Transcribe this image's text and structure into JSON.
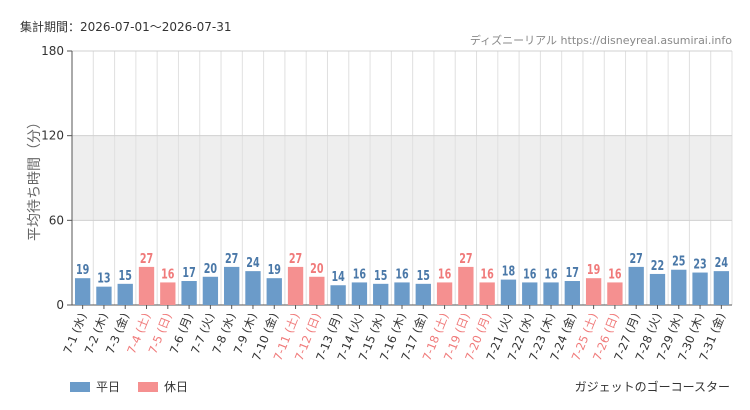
{
  "header": {
    "period": "集計期間：2026-07-01〜2026-07-31",
    "credit": "ディズニーリアル https://disneyreal.asumirai.info"
  },
  "legend": {
    "weekday_label": "平日",
    "holiday_label": "休日"
  },
  "footer": {
    "attraction": "ガジェットのゴーコースター"
  },
  "colors": {
    "weekday": "#6b9bc9",
    "holiday": "#f59090",
    "weekday_text": "#4a78a8",
    "holiday_text": "#f07a7a",
    "band": "#eeeeee",
    "grid": "#e0e0e0"
  },
  "chart_data": {
    "type": "bar",
    "ylabel": "平均待ち時間（分）",
    "ylim": [
      0,
      180
    ],
    "yticks": [
      0,
      60,
      120,
      180
    ],
    "shaded_band": [
      60,
      120
    ],
    "categories": [
      "7-1 (水)",
      "7-2 (木)",
      "7-3 (金)",
      "7-4 (土)",
      "7-5 (日)",
      "7-6 (月)",
      "7-7 (火)",
      "7-8 (水)",
      "7-9 (木)",
      "7-10 (金)",
      "7-11 (土)",
      "7-12 (日)",
      "7-13 (月)",
      "7-14 (火)",
      "7-15 (水)",
      "7-16 (木)",
      "7-17 (金)",
      "7-18 (土)",
      "7-19 (日)",
      "7-20 (月)",
      "7-21 (火)",
      "7-22 (水)",
      "7-23 (木)",
      "7-24 (金)",
      "7-25 (土)",
      "7-26 (日)",
      "7-27 (月)",
      "7-28 (火)",
      "7-29 (水)",
      "7-30 (木)",
      "7-31 (金)"
    ],
    "values": [
      19,
      13,
      15,
      27,
      16,
      17,
      20,
      27,
      24,
      19,
      27,
      20,
      14,
      16,
      15,
      16,
      15,
      16,
      27,
      16,
      18,
      16,
      16,
      17,
      19,
      16,
      27,
      22,
      25,
      23,
      24
    ],
    "day_type": [
      "平日",
      "平日",
      "平日",
      "休日",
      "休日",
      "平日",
      "平日",
      "平日",
      "平日",
      "平日",
      "休日",
      "休日",
      "平日",
      "平日",
      "平日",
      "平日",
      "平日",
      "休日",
      "休日",
      "休日",
      "平日",
      "平日",
      "平日",
      "平日",
      "休日",
      "休日",
      "平日",
      "平日",
      "平日",
      "平日",
      "平日"
    ]
  }
}
